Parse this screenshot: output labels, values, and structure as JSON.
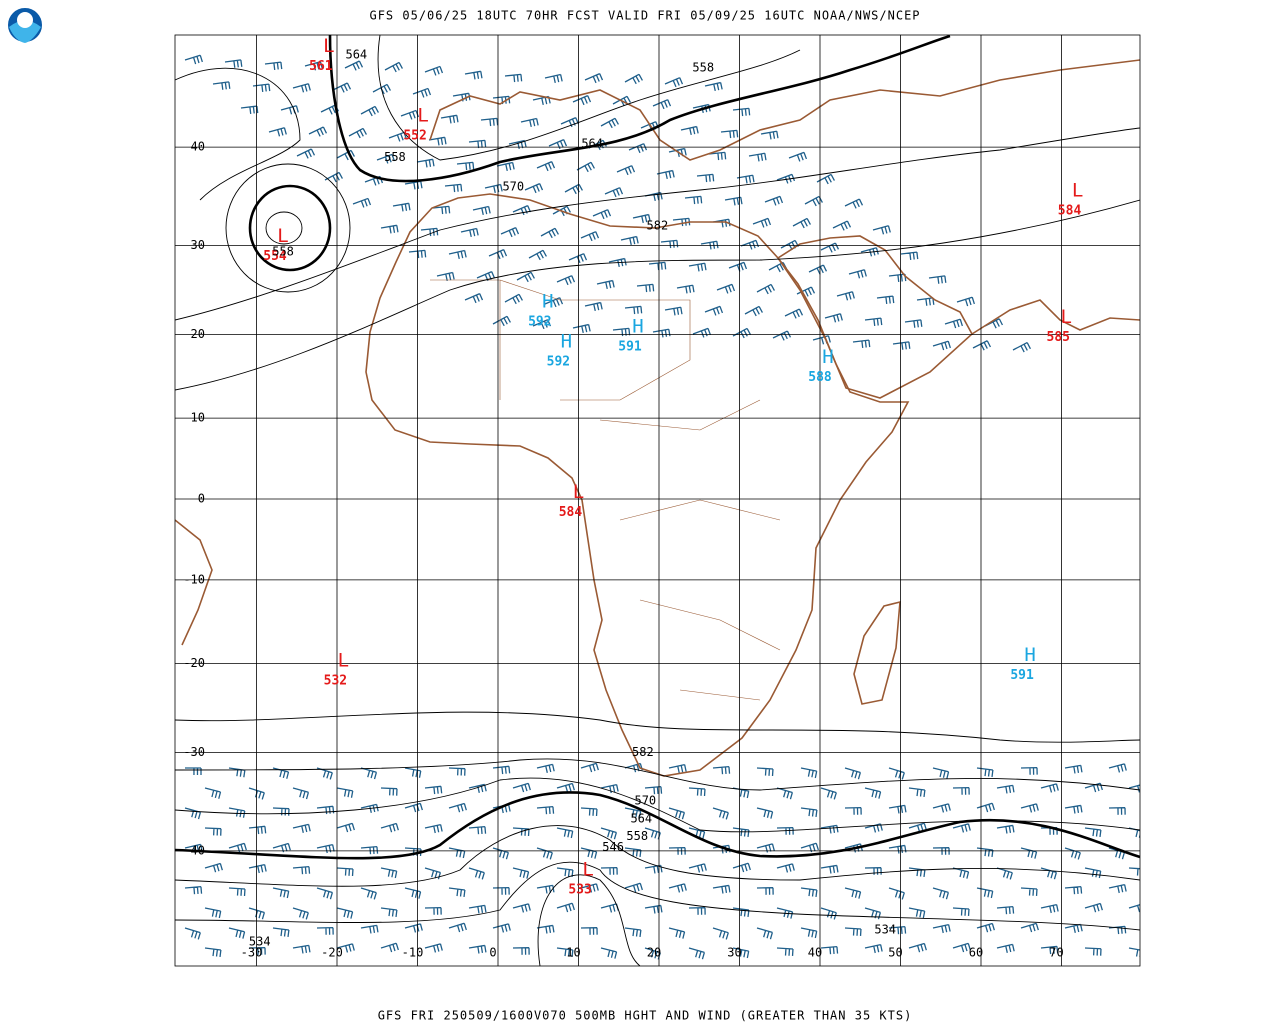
{
  "header": {
    "title": "GFS 05/06/25 18UTC 70HR FCST VALID FRI 05/09/25 16UTC NOAA/NWS/NCEP"
  },
  "footer": {
    "caption": "GFS FRI 250509/1600V070 500MB HGHT AND WIND (GREATER THAN 35 KTS)"
  },
  "map": {
    "lon_ticks": [
      -30,
      -20,
      -10,
      0,
      10,
      20,
      30,
      40,
      50,
      60,
      70
    ],
    "lat_ticks": [
      40,
      30,
      20,
      10,
      0,
      -10,
      -20,
      -30,
      -40
    ],
    "centers": [
      {
        "symbol": "L",
        "value": 561,
        "lat": 47.9,
        "lon": -22.0
      },
      {
        "symbol": "L",
        "value": 552,
        "lat": 41.8,
        "lon": -10.3
      },
      {
        "symbol": "L",
        "value": 554,
        "lat": 29.7,
        "lon": -27.7
      },
      {
        "symbol": "L",
        "value": 584,
        "lat": 34.5,
        "lon": 71.0
      },
      {
        "symbol": "L",
        "value": 585,
        "lat": 20.6,
        "lon": 69.6
      },
      {
        "symbol": "L",
        "value": 584,
        "lat": -0.7,
        "lon": 9.0
      },
      {
        "symbol": "L",
        "value": 532,
        "lat": -21.1,
        "lon": -20.2
      },
      {
        "symbol": "L",
        "value": 533,
        "lat": -42.9,
        "lon": 10.2
      },
      {
        "symbol": "H",
        "value": 592,
        "lat": 22.4,
        "lon": 5.2
      },
      {
        "symbol": "H",
        "value": 592,
        "lat": 17.7,
        "lon": 7.5
      },
      {
        "symbol": "H",
        "value": 591,
        "lat": 19.5,
        "lon": 16.4
      },
      {
        "symbol": "H",
        "value": 588,
        "lat": 15.9,
        "lon": 40.0
      },
      {
        "symbol": "H",
        "value": 591,
        "lat": -20.5,
        "lon": 65.1
      }
    ],
    "contour_labels": [
      {
        "value": 564,
        "lat": 48.2,
        "lon": -17.6
      },
      {
        "value": 558,
        "lat": 47.1,
        "lon": 25.5
      },
      {
        "value": 558,
        "lat": 39.0,
        "lon": -12.8
      },
      {
        "value": 564,
        "lat": 40.3,
        "lon": 11.7
      },
      {
        "value": 570,
        "lat": 36.1,
        "lon": 1.9
      },
      {
        "value": 582,
        "lat": 32.1,
        "lon": 19.8
      },
      {
        "value": 558,
        "lat": 29.3,
        "lon": -26.7
      },
      {
        "value": 582,
        "lat": -30.0,
        "lon": 18.0
      },
      {
        "value": 570,
        "lat": -35.1,
        "lon": 18.3
      },
      {
        "value": 564,
        "lat": -36.9,
        "lon": 17.8
      },
      {
        "value": 558,
        "lat": -38.6,
        "lon": 17.3
      },
      {
        "value": 546,
        "lat": -39.7,
        "lon": 14.3
      },
      {
        "value": 534,
        "lat": -48.1,
        "lon": -29.6
      },
      {
        "value": 534,
        "lat": -47.1,
        "lon": 48.1
      }
    ]
  }
}
